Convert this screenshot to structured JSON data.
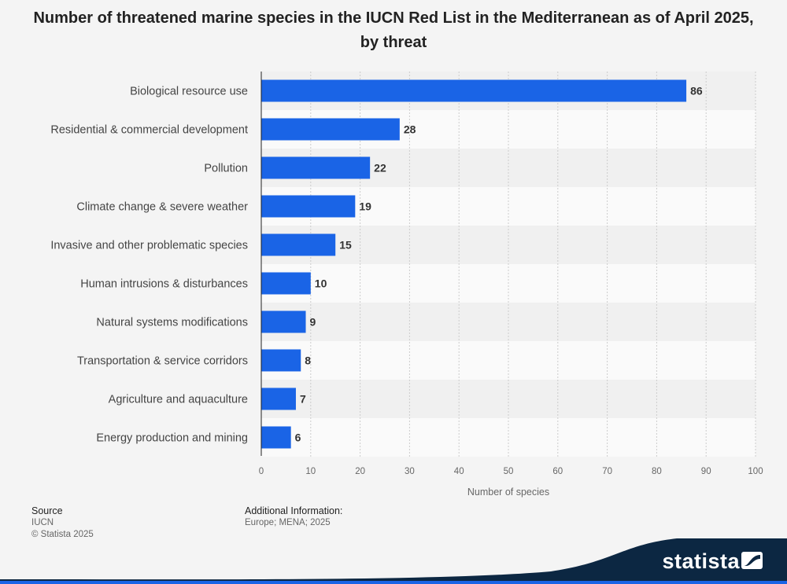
{
  "title": "Number of threatened marine species in the IUCN Red List in the Mediterranean as of April 2025, by threat",
  "chart_data": {
    "type": "bar",
    "orientation": "horizontal",
    "categories": [
      "Biological resource use",
      "Residential & commercial development",
      "Pollution",
      "Climate change & severe weather",
      "Invasive and other problematic species",
      "Human intrusions & disturbances",
      "Natural systems modifications",
      "Transportation & service corridors",
      "Agriculture and aquaculture",
      "Energy production and mining"
    ],
    "values": [
      86,
      28,
      22,
      19,
      15,
      10,
      9,
      8,
      7,
      6
    ],
    "xlabel": "Number of species",
    "ylabel": "",
    "xlim": [
      0,
      100
    ],
    "ticks": [
      0,
      10,
      20,
      30,
      40,
      50,
      60,
      70,
      80,
      90,
      100
    ],
    "grid": true,
    "bar_color": "#1a64e6"
  },
  "footer": {
    "source_heading": "Source",
    "source_text": "IUCN",
    "copyright": "© Statista 2025",
    "additional_heading": "Additional Information:",
    "additional_text": "Europe; MENA; 2025"
  },
  "brand": {
    "name": "statista",
    "wave_color": "#0c2742",
    "accent_color": "#1a64e6"
  }
}
